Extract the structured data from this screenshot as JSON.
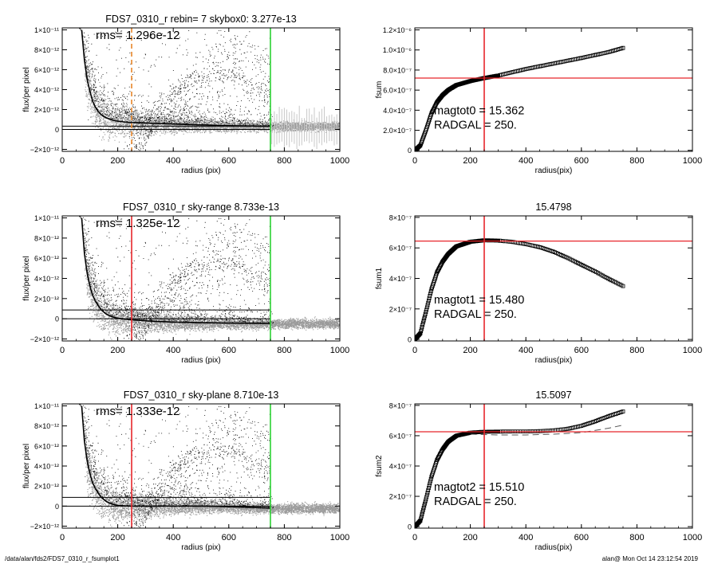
{
  "footer": {
    "path": "/data/alan/fds2/FDS7_0310_r_fsumplot1",
    "user_stamp": "alan@  Mon Oct 14 23:12:54 2019"
  },
  "colors": {
    "axes": "#000000",
    "points_dark": "#000000",
    "points_light": "#9a9a9a",
    "red": "#e8262b",
    "green": "#2bd233",
    "orange": "#e8862a"
  },
  "chart_data": [
    {
      "id": "flux-rebin",
      "type": "scatter",
      "title": "FDS7_0310_r rebin= 7    skybox0:  3.277e-13",
      "xlabel": "radius (pix)",
      "ylabel": "flux/per pixel",
      "xlim": [
        0,
        1000
      ],
      "ylim": [
        -2.2e-12,
        1.02e-11
      ],
      "xticks": [
        0,
        200,
        400,
        600,
        800,
        1000
      ],
      "xtick_labels": [
        "0",
        "200",
        "400",
        "600",
        "800",
        "1000"
      ],
      "yticks": [
        -2e-12,
        0,
        2e-12,
        4e-12,
        6e-12,
        8e-12,
        1e-11
      ],
      "ytick_labels": [
        "−2×10⁻¹²",
        "0",
        "2×10⁻¹²",
        "4×10⁻¹²",
        "6×10⁻¹²",
        "8×10⁻¹²",
        "1×10⁻¹¹"
      ],
      "annotation": "rms= 1.296e-12",
      "sky_level": 3.277e-13,
      "profile_x": [
        70,
        80,
        90,
        100,
        110,
        120,
        130,
        140,
        150,
        160,
        170,
        180,
        190,
        200,
        220,
        250,
        300,
        350,
        400,
        450,
        500,
        550,
        600,
        650,
        700,
        750
      ],
      "profile_y": [
        1e-11,
        7e-12,
        5e-12,
        3.8e-12,
        2.8e-12,
        2.2e-12,
        1.8e-12,
        1.5e-12,
        1.3e-12,
        1.15e-12,
        1.05e-12,
        9.5e-13,
        8.8e-13,
        8.3e-13,
        7.6e-13,
        7e-13,
        6.5e-13,
        6e-13,
        5.5e-13,
        5e-13,
        4.6e-13,
        4.2e-13,
        3.8e-13,
        3.6e-13,
        3.4e-13,
        3.3e-13
      ],
      "hlines": [
        {
          "y": 0,
          "color": "#000000"
        },
        {
          "y": 3.277e-13,
          "color": "#000000"
        }
      ],
      "vlines": [
        {
          "x": 250,
          "color": "#e8862a",
          "dashed": true
        },
        {
          "x": 750,
          "color": "#2bd233"
        }
      ],
      "halo_shift": 0,
      "error_bars": true
    },
    {
      "id": "fsum",
      "type": "line",
      "title": "",
      "xlabel": "radius(pix)",
      "ylabel": "fsum",
      "xlim": [
        0,
        1000
      ],
      "ylim": [
        -1e-08,
        1.22e-06
      ],
      "xticks": [
        0,
        200,
        400,
        600,
        800,
        1000
      ],
      "xtick_labels": [
        "0",
        "200",
        "400",
        "600",
        "800",
        "1000"
      ],
      "yticks": [
        0,
        2e-07,
        4e-07,
        6e-07,
        8e-07,
        1e-06,
        1.2e-06
      ],
      "ytick_labels": [
        "0",
        "2.0×10⁻⁷",
        "4.0×10⁻⁷",
        "6.0×10⁻⁷",
        "8.0×10⁻⁷",
        "1.0×10⁻⁶",
        "1.2×10⁻⁶"
      ],
      "annotations": [
        "magtot0 =  15.362",
        "RADGAL =    250."
      ],
      "curve_x": [
        0,
        20,
        40,
        60,
        80,
        100,
        120,
        150,
        200,
        250,
        300,
        400,
        500,
        600,
        700,
        750
      ],
      "curve_y": [
        0,
        5e-08,
        2e-07,
        3.7e-07,
        4.8e-07,
        5.5e-07,
        6e-07,
        6.5e-07,
        6.9e-07,
        7.2e-07,
        7.45e-07,
        8.1e-07,
        8.65e-07,
        9.2e-07,
        9.8e-07,
        1.02e-06
      ],
      "hline": 7.2e-07,
      "vline": 250
    },
    {
      "id": "flux-sky-range",
      "type": "scatter",
      "title": "FDS7_0310_r sky-range  8.733e-13",
      "xlabel": "radius (pix)",
      "ylabel": "flux/per pixel",
      "xlim": [
        0,
        1000
      ],
      "ylim": [
        -2.2e-12,
        1.02e-11
      ],
      "xticks": [
        0,
        200,
        400,
        600,
        800,
        1000
      ],
      "xtick_labels": [
        "0",
        "200",
        "400",
        "600",
        "800",
        "1000"
      ],
      "yticks": [
        -2e-12,
        0,
        2e-12,
        4e-12,
        6e-12,
        8e-12,
        1e-11
      ],
      "ytick_labels": [
        "−2×10⁻¹²",
        "0",
        "2×10⁻¹²",
        "4×10⁻¹²",
        "6×10⁻¹²",
        "8×10⁻¹²",
        "1×10⁻¹¹"
      ],
      "annotation": "rms= 1.325e-12",
      "sky_level": 8.733e-13,
      "profile_x": [
        70,
        80,
        90,
        100,
        110,
        120,
        130,
        140,
        150,
        160,
        170,
        180,
        190,
        200,
        220,
        250,
        300,
        350,
        400,
        450,
        500,
        550,
        600,
        650,
        700,
        750
      ],
      "profile_y": [
        1e-11,
        6.5e-12,
        4.5e-12,
        3.2e-12,
        2.3e-12,
        1.7e-12,
        1.3e-12,
        9e-13,
        6.5e-13,
        4.5e-13,
        3e-13,
        2e-13,
        1.2e-13,
        6e-14,
        -2e-14,
        -1e-13,
        -2e-13,
        -2.8e-13,
        -3.3e-13,
        -3.6e-13,
        -3.9e-13,
        -4.1e-13,
        -4.3e-13,
        -4.4e-13,
        -4.5e-13,
        -4.6e-13
      ],
      "hlines": [
        {
          "y": 0,
          "color": "#000000"
        },
        {
          "y": 8.733e-13,
          "color": "#000000"
        }
      ],
      "vlines": [
        {
          "x": 250,
          "color": "#e8262b"
        },
        {
          "x": 750,
          "color": "#2bd233"
        }
      ],
      "halo_shift": 0,
      "error_bars": false
    },
    {
      "id": "fsum1",
      "type": "line",
      "title": "15.4798",
      "xlabel": "radius(pix)",
      "ylabel": "fsum1",
      "xlim": [
        0,
        1000
      ],
      "ylim": [
        -1e-08,
        8.1e-07
      ],
      "xticks": [
        0,
        200,
        400,
        600,
        800,
        1000
      ],
      "xtick_labels": [
        "0",
        "200",
        "400",
        "600",
        "800",
        "1000"
      ],
      "yticks": [
        0,
        2e-07,
        4e-07,
        6e-07,
        8e-07
      ],
      "ytick_labels": [
        "0",
        "2×10⁻⁷",
        "4×10⁻⁷",
        "6×10⁻⁷",
        "8×10⁻⁷"
      ],
      "annotations": [
        "magtot1 =  15.480",
        "RADGAL =    250."
      ],
      "curve_x": [
        0,
        20,
        40,
        60,
        80,
        100,
        120,
        150,
        200,
        250,
        300,
        350,
        400,
        450,
        500,
        550,
        600,
        650,
        700,
        750
      ],
      "curve_y": [
        0,
        4e-08,
        1.8e-07,
        3.3e-07,
        4.4e-07,
        5.1e-07,
        5.6e-07,
        6.1e-07,
        6.4e-07,
        6.5e-07,
        6.48e-07,
        6.4e-07,
        6.25e-07,
        6.05e-07,
        5.75e-07,
        5.35e-07,
        4.9e-07,
        4.45e-07,
        3.95e-07,
        3.5e-07
      ],
      "hline": 6.45e-07,
      "vline": 250
    },
    {
      "id": "flux-sky-plane",
      "type": "scatter",
      "title": "FDS7_0310_r sky-plane  8.710e-13",
      "xlabel": "radius (pix)",
      "ylabel": "flux/per pixel",
      "xlim": [
        0,
        1000
      ],
      "ylim": [
        -2.2e-12,
        1.02e-11
      ],
      "xticks": [
        0,
        200,
        400,
        600,
        800,
        1000
      ],
      "xtick_labels": [
        "0",
        "200",
        "400",
        "600",
        "800",
        "1000"
      ],
      "yticks": [
        -2e-12,
        0,
        2e-12,
        4e-12,
        6e-12,
        8e-12,
        1e-11
      ],
      "ytick_labels": [
        "−2×10⁻¹²",
        "0",
        "2×10⁻¹²",
        "4×10⁻¹²",
        "6×10⁻¹²",
        "8×10⁻¹²",
        "1×10⁻¹¹"
      ],
      "annotation": "rms= 1.333e-12",
      "sky_level": 8.71e-13,
      "profile_x": [
        70,
        80,
        90,
        100,
        110,
        120,
        130,
        140,
        150,
        160,
        170,
        180,
        190,
        200,
        220,
        250,
        300,
        350,
        400,
        450,
        500,
        550,
        600,
        650,
        700,
        750
      ],
      "profile_y": [
        1e-11,
        6.5e-12,
        4.5e-12,
        3.2e-12,
        2.3e-12,
        1.7e-12,
        1.3e-12,
        9e-13,
        6.5e-13,
        4.5e-13,
        3e-13,
        2e-13,
        1.3e-13,
        8e-14,
        3e-14,
        1e-14,
        0,
        0,
        0,
        0,
        0,
        -2e-14,
        -6e-14,
        -1e-13,
        -1.5e-13,
        -2e-13
      ],
      "hlines": [
        {
          "y": 0,
          "color": "#000000"
        },
        {
          "y": 8.71e-13,
          "color": "#000000"
        }
      ],
      "vlines": [
        {
          "x": 250,
          "color": "#e8262b"
        },
        {
          "x": 750,
          "color": "#2bd233"
        }
      ],
      "halo_shift": 0,
      "error_bars": false
    },
    {
      "id": "fsum2",
      "type": "line",
      "title": "15.5097",
      "xlabel": "radius(pix)",
      "ylabel": "fsum2",
      "xlim": [
        0,
        1000
      ],
      "ylim": [
        -1e-08,
        8.1e-07
      ],
      "xticks": [
        0,
        200,
        400,
        600,
        800,
        1000
      ],
      "xtick_labels": [
        "0",
        "200",
        "400",
        "600",
        "800",
        "1000"
      ],
      "yticks": [
        0,
        2e-07,
        4e-07,
        6e-07,
        8e-07
      ],
      "ytick_labels": [
        "0",
        "2×10⁻⁷",
        "4×10⁻⁷",
        "6×10⁻⁷",
        "8×10⁻⁷"
      ],
      "annotations": [
        "magtot2 =  15.510",
        "RADGAL =    250."
      ],
      "curve_x": [
        0,
        20,
        40,
        60,
        80,
        100,
        120,
        150,
        200,
        250,
        300,
        350,
        400,
        450,
        500,
        550,
        600,
        650,
        700,
        750
      ],
      "curve_y": [
        0,
        4e-08,
        1.8e-07,
        3.3e-07,
        4.4e-07,
        5.1e-07,
        5.6e-07,
        6e-07,
        6.2e-07,
        6.26e-07,
        6.27e-07,
        6.28e-07,
        6.28e-07,
        6.3e-07,
        6.35e-07,
        6.45e-07,
        6.65e-07,
        6.95e-07,
        7.3e-07,
        7.6e-07
      ],
      "dashed_x": [
        200,
        300,
        400,
        500,
        600,
        700,
        750
      ],
      "dashed_y": [
        6.1e-07,
        6.05e-07,
        6.05e-07,
        6.1e-07,
        6.2e-07,
        6.5e-07,
        6.7e-07
      ],
      "hline": 6.26e-07,
      "vline": 250
    }
  ]
}
